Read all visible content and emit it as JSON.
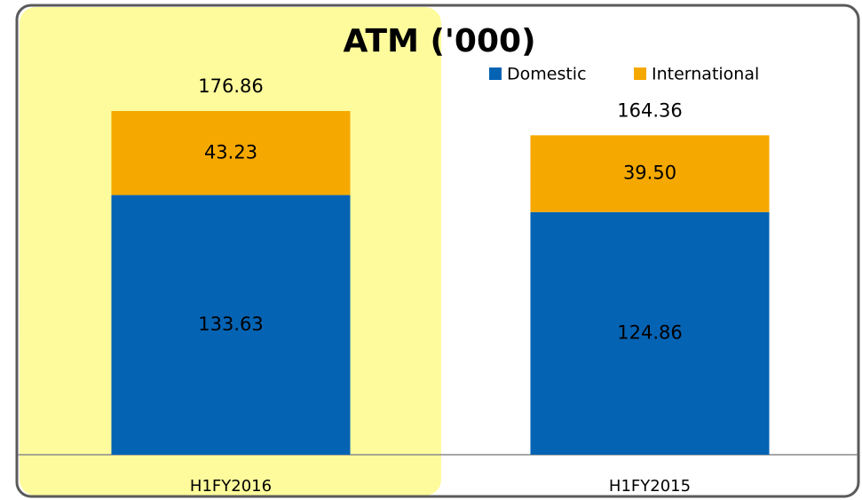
{
  "chart_data": {
    "type": "stacked_bar",
    "title": "ATM ('000)",
    "categories": [
      "H1FY2016",
      "H1FY2015"
    ],
    "series": [
      {
        "name": "Domestic",
        "color": "#0563b4",
        "values": [
          133.63,
          124.86
        ]
      },
      {
        "name": "International",
        "color": "#f5a800",
        "values": [
          43.23,
          39.5
        ],
        "value_labels": [
          "43.23",
          "39.50"
        ]
      }
    ],
    "totals": [
      176.86,
      164.36
    ],
    "legend": "top-right"
  }
}
